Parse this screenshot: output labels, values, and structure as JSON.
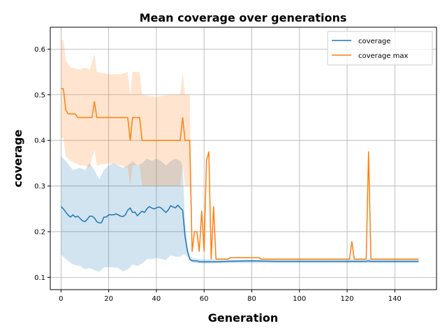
{
  "chart_data": {
    "type": "line",
    "title": "Mean coverage over generations",
    "xlabel": "Generation",
    "ylabel": "coverage",
    "xlim": [
      -4.5,
      157.5
    ],
    "ylim": [
      0.073,
      0.648
    ],
    "xticks": [
      0,
      20,
      40,
      60,
      80,
      100,
      120,
      140
    ],
    "yticks": [
      0.1,
      0.2,
      0.3,
      0.4,
      0.5,
      0.6
    ],
    "grid": true,
    "legend_position": "top-right",
    "series": [
      {
        "name": "coverage",
        "color": "#1f77b4",
        "band_color": "#1f77b4",
        "points": [
          [
            0,
            0.255
          ],
          [
            1,
            0.25
          ],
          [
            2,
            0.243
          ],
          [
            3,
            0.236
          ],
          [
            4,
            0.232
          ],
          [
            5,
            0.237
          ],
          [
            6,
            0.232
          ],
          [
            7,
            0.234
          ],
          [
            8,
            0.229
          ],
          [
            9,
            0.224
          ],
          [
            10,
            0.222
          ],
          [
            11,
            0.227
          ],
          [
            12,
            0.234
          ],
          [
            13,
            0.234
          ],
          [
            14,
            0.23
          ],
          [
            15,
            0.222
          ],
          [
            16,
            0.219
          ],
          [
            17,
            0.22
          ],
          [
            18,
            0.232
          ],
          [
            19,
            0.232
          ],
          [
            20,
            0.237
          ],
          [
            21,
            0.237
          ],
          [
            22,
            0.237
          ],
          [
            23,
            0.239
          ],
          [
            24,
            0.237
          ],
          [
            25,
            0.234
          ],
          [
            26,
            0.233
          ],
          [
            27,
            0.237
          ],
          [
            28,
            0.247
          ],
          [
            29,
            0.252
          ],
          [
            30,
            0.242
          ],
          [
            31,
            0.243
          ],
          [
            32,
            0.235
          ],
          [
            33,
            0.24
          ],
          [
            34,
            0.245
          ],
          [
            35,
            0.242
          ],
          [
            36,
            0.25
          ],
          [
            37,
            0.255
          ],
          [
            38,
            0.252
          ],
          [
            39,
            0.25
          ],
          [
            40,
            0.252
          ],
          [
            41,
            0.254
          ],
          [
            42,
            0.252
          ],
          [
            43,
            0.247
          ],
          [
            44,
            0.242
          ],
          [
            45,
            0.248
          ],
          [
            46,
            0.257
          ],
          [
            47,
            0.254
          ],
          [
            48,
            0.252
          ],
          [
            49,
            0.258
          ],
          [
            50,
            0.252
          ],
          [
            51,
            0.247
          ],
          [
            52,
            0.19
          ],
          [
            53,
            0.158
          ],
          [
            54,
            0.14
          ],
          [
            55,
            0.136
          ],
          [
            56,
            0.136
          ],
          [
            57,
            0.136
          ],
          [
            58,
            0.134
          ],
          [
            59,
            0.134
          ],
          [
            60,
            0.134
          ],
          [
            65,
            0.134
          ],
          [
            70,
            0.135
          ],
          [
            80,
            0.136
          ],
          [
            90,
            0.135
          ],
          [
            100,
            0.135
          ],
          [
            110,
            0.135
          ],
          [
            120,
            0.135
          ],
          [
            128,
            0.135
          ],
          [
            129,
            0.136
          ],
          [
            130,
            0.135
          ],
          [
            140,
            0.135
          ],
          [
            150,
            0.135
          ]
        ],
        "band": [
          [
            0,
            0.365,
            0.15
          ],
          [
            2,
            0.355,
            0.14
          ],
          [
            5,
            0.335,
            0.128
          ],
          [
            8,
            0.34,
            0.125
          ],
          [
            10,
            0.335,
            0.118
          ],
          [
            12,
            0.35,
            0.12
          ],
          [
            14,
            0.335,
            0.116
          ],
          [
            16,
            0.315,
            0.112
          ],
          [
            18,
            0.335,
            0.122
          ],
          [
            20,
            0.345,
            0.122
          ],
          [
            22,
            0.35,
            0.122
          ],
          [
            24,
            0.345,
            0.12
          ],
          [
            26,
            0.34,
            0.113
          ],
          [
            28,
            0.345,
            0.117
          ],
          [
            30,
            0.355,
            0.128
          ],
          [
            32,
            0.345,
            0.125
          ],
          [
            34,
            0.35,
            0.13
          ],
          [
            36,
            0.36,
            0.14
          ],
          [
            38,
            0.355,
            0.14
          ],
          [
            40,
            0.36,
            0.142
          ],
          [
            42,
            0.355,
            0.14
          ],
          [
            44,
            0.345,
            0.138
          ],
          [
            46,
            0.355,
            0.148
          ],
          [
            48,
            0.36,
            0.145
          ],
          [
            50,
            0.355,
            0.145
          ],
          [
            51,
            0.345,
            0.15
          ],
          [
            52,
            0.225,
            0.15
          ],
          [
            53,
            0.17,
            0.145
          ],
          [
            54,
            0.145,
            0.135
          ],
          [
            56,
            0.141,
            0.131
          ],
          [
            60,
            0.139,
            0.13
          ],
          [
            70,
            0.139,
            0.131
          ],
          [
            100,
            0.139,
            0.131
          ],
          [
            128,
            0.139,
            0.131
          ],
          [
            129,
            0.141,
            0.131
          ],
          [
            130,
            0.139,
            0.131
          ],
          [
            150,
            0.139,
            0.131
          ]
        ]
      },
      {
        "name": "coverage max",
        "color": "#ff7f0e",
        "band_color": "#ff7f0e",
        "points": [
          [
            0,
            0.513
          ],
          [
            1,
            0.513
          ],
          [
            2,
            0.467
          ],
          [
            3,
            0.458
          ],
          [
            4,
            0.458
          ],
          [
            5,
            0.458
          ],
          [
            6,
            0.458
          ],
          [
            7,
            0.45
          ],
          [
            13,
            0.45
          ],
          [
            14,
            0.485
          ],
          [
            15,
            0.45
          ],
          [
            28,
            0.45
          ],
          [
            29,
            0.4
          ],
          [
            30,
            0.45
          ],
          [
            33,
            0.45
          ],
          [
            34,
            0.4
          ],
          [
            50,
            0.4
          ],
          [
            51,
            0.45
          ],
          [
            52,
            0.4
          ],
          [
            54,
            0.4
          ],
          [
            55,
            0.157
          ],
          [
            56,
            0.2
          ],
          [
            57,
            0.2
          ],
          [
            58,
            0.157
          ],
          [
            59,
            0.245
          ],
          [
            60,
            0.157
          ],
          [
            61,
            0.355
          ],
          [
            62,
            0.375
          ],
          [
            63,
            0.14
          ],
          [
            64,
            0.255
          ],
          [
            65,
            0.14
          ],
          [
            70,
            0.14
          ],
          [
            71,
            0.143
          ],
          [
            83,
            0.143
          ],
          [
            84,
            0.14
          ],
          [
            121,
            0.14
          ],
          [
            122,
            0.178
          ],
          [
            123,
            0.14
          ],
          [
            128,
            0.14
          ],
          [
            129,
            0.375
          ],
          [
            130,
            0.14
          ],
          [
            150,
            0.14
          ]
        ],
        "band": [
          [
            0,
            0.62,
            0.405
          ],
          [
            1,
            0.62,
            0.405
          ],
          [
            2,
            0.575,
            0.365
          ],
          [
            4,
            0.56,
            0.355
          ],
          [
            8,
            0.555,
            0.345
          ],
          [
            10,
            0.56,
            0.345
          ],
          [
            12,
            0.555,
            0.34
          ],
          [
            14,
            0.59,
            0.38
          ],
          [
            15,
            0.55,
            0.345
          ],
          [
            20,
            0.545,
            0.35
          ],
          [
            25,
            0.545,
            0.345
          ],
          [
            28,
            0.55,
            0.34
          ],
          [
            29,
            0.5,
            0.3
          ],
          [
            30,
            0.55,
            0.345
          ],
          [
            33,
            0.55,
            0.345
          ],
          [
            34,
            0.5,
            0.3
          ],
          [
            40,
            0.495,
            0.3
          ],
          [
            45,
            0.5,
            0.3
          ],
          [
            50,
            0.5,
            0.3
          ],
          [
            51,
            0.55,
            0.35
          ],
          [
            52,
            0.5,
            0.3
          ],
          [
            54,
            0.5,
            0.3
          ],
          [
            55,
            0.157,
            0.157
          ],
          [
            56,
            0.2,
            0.2
          ],
          [
            57,
            0.2,
            0.2
          ],
          [
            58,
            0.157,
            0.157
          ],
          [
            59,
            0.245,
            0.245
          ],
          [
            60,
            0.157,
            0.157
          ],
          [
            61,
            0.355,
            0.355
          ],
          [
            62,
            0.375,
            0.375
          ],
          [
            63,
            0.14,
            0.14
          ],
          [
            64,
            0.255,
            0.255
          ],
          [
            65,
            0.14,
            0.14
          ],
          [
            150,
            0.14,
            0.14
          ]
        ]
      }
    ]
  }
}
